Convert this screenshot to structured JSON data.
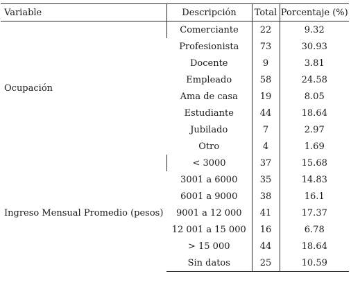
{
  "table": {
    "headers": [
      "Variable",
      "Descripción",
      "Total",
      "Porcentaje (%)"
    ],
    "groups": [
      {
        "variable": "Ocupación",
        "rows": [
          {
            "descripcion": "Comerciante",
            "total": "22",
            "porcentaje": "9.32"
          },
          {
            "descripcion": "Profesionista",
            "total": "73",
            "porcentaje": "30.93"
          },
          {
            "descripcion": "Docente",
            "total": "9",
            "porcentaje": "3.81"
          },
          {
            "descripcion": "Empleado",
            "total": "58",
            "porcentaje": "24.58"
          },
          {
            "descripcion": "Ama de casa",
            "total": "19",
            "porcentaje": "8.05"
          },
          {
            "descripcion": "Estudiante",
            "total": "44",
            "porcentaje": "18.64"
          },
          {
            "descripcion": "Jubilado",
            "total": "7",
            "porcentaje": "2.97"
          },
          {
            "descripcion": "Otro",
            "total": "4",
            "porcentaje": "1.69"
          }
        ]
      },
      {
        "variable": "Ingreso Mensual Promedio (pesos)",
        "rows": [
          {
            "descripcion": "< 3000",
            "total": "37",
            "porcentaje": "15.68"
          },
          {
            "descripcion": "3001 a 6000",
            "total": "35",
            "porcentaje": "14.83"
          },
          {
            "descripcion": "6001 a 9000",
            "total": "38",
            "porcentaje": "16.1"
          },
          {
            "descripcion": "9001 a 12 000",
            "total": "41",
            "porcentaje": "17.37"
          },
          {
            "descripcion": "12 001 a 15 000",
            "total": "16",
            "porcentaje": "6.78"
          },
          {
            "descripcion": "> 15 000",
            "total": "44",
            "porcentaje": "18.64"
          },
          {
            "descripcion": "Sin datos",
            "total": "25",
            "porcentaje": "10.59"
          }
        ]
      }
    ]
  }
}
